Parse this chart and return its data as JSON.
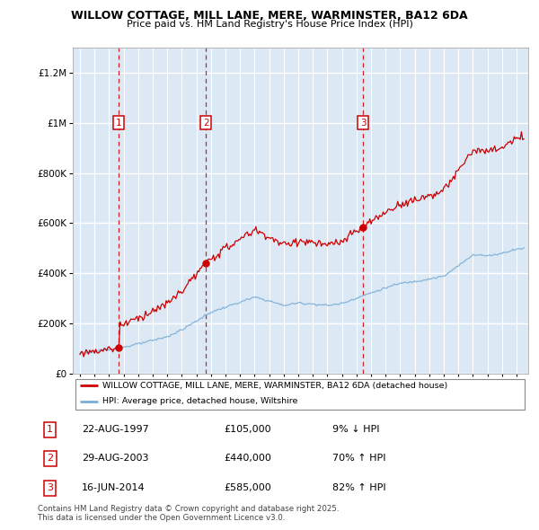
{
  "title": "WILLOW COTTAGE, MILL LANE, MERE, WARMINSTER, BA12 6DA",
  "subtitle": "Price paid vs. HM Land Registry's House Price Index (HPI)",
  "legend_label_red": "WILLOW COTTAGE, MILL LANE, MERE, WARMINSTER, BA12 6DA (detached house)",
  "legend_label_blue": "HPI: Average price, detached house, Wiltshire",
  "transactions": [
    {
      "num": 1,
      "date": "22-AUG-1997",
      "year": 1997.64,
      "price": 105000,
      "pct": "9% ↓ HPI"
    },
    {
      "num": 2,
      "date": "29-AUG-2003",
      "year": 2003.66,
      "price": 440000,
      "pct": "70% ↑ HPI"
    },
    {
      "num": 3,
      "date": "16-JUN-2014",
      "year": 2014.46,
      "price": 585000,
      "pct": "82% ↑ HPI"
    }
  ],
  "footnote": "Contains HM Land Registry data © Crown copyright and database right 2025.\nThis data is licensed under the Open Government Licence v3.0.",
  "ylim": [
    0,
    1300000
  ],
  "yticks": [
    0,
    200000,
    400000,
    600000,
    800000,
    1000000,
    1200000
  ],
  "xlim_start": 1994.5,
  "xlim_end": 2025.8,
  "background_color": "#dce9f5",
  "grid_color": "#ffffff",
  "red_line_color": "#cc0000",
  "blue_line_color": "#7aaed6"
}
